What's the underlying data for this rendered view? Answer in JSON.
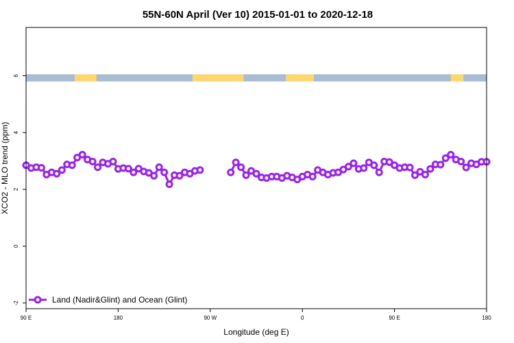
{
  "chart_data": {
    "type": "line",
    "title": "55N-60N April (Ver 10)   2015-01-01 to 2020-12-18",
    "xlabel": "Longitude (deg E)",
    "ylabel": "XCO2 - MLO trend (ppm)",
    "xlim": [
      -90,
      270
    ],
    "ylim": [
      -2.2,
      7.7
    ],
    "x_ticks": [
      {
        "value": -90,
        "label": "90 E"
      },
      {
        "value": -18,
        "label": "180"
      },
      {
        "value": 54,
        "label": "90 W"
      },
      {
        "value": 126,
        "label": "0"
      },
      {
        "value": 198,
        "label": "90 E"
      },
      {
        "value": 270,
        "label": "180"
      }
    ],
    "y_ticks": [
      {
        "value": -2,
        "label": "-2"
      },
      {
        "value": 0,
        "label": "0"
      },
      {
        "value": 2,
        "label": "2"
      },
      {
        "value": 4,
        "label": "4"
      },
      {
        "value": 6,
        "label": "6"
      }
    ],
    "grid": false,
    "legend_position": "bottom-left",
    "series": [
      {
        "name": "Land (Nadir&Glint) and Ocean (Glint)",
        "color": "#9a1ff0",
        "x": [
          -90,
          -86,
          -82,
          -78,
          -74,
          -70,
          -66,
          -62,
          -58,
          -54,
          -50,
          -46,
          -42,
          -38,
          -34,
          -30,
          -26,
          -22,
          -18,
          -14,
          -10,
          -6,
          -2,
          2,
          6,
          10,
          14,
          18,
          22,
          26,
          30,
          34,
          38,
          42,
          46,
          70,
          74,
          78,
          82,
          86,
          90,
          94,
          98,
          102,
          106,
          110,
          114,
          118,
          122,
          126,
          130,
          134,
          138,
          142,
          146,
          150,
          154,
          158,
          162,
          166,
          170,
          174,
          178,
          182,
          186,
          190,
          194,
          198,
          202,
          206,
          210,
          214,
          218,
          222,
          226,
          230,
          234,
          238,
          242,
          246,
          250,
          254,
          258,
          262,
          266,
          270
        ],
        "y": [
          2.85,
          2.75,
          2.78,
          2.76,
          2.52,
          2.6,
          2.55,
          2.68,
          2.88,
          2.85,
          3.12,
          3.22,
          3.05,
          2.98,
          2.78,
          2.95,
          2.9,
          2.98,
          2.72,
          2.75,
          2.73,
          2.6,
          2.73,
          2.63,
          2.58,
          2.48,
          2.78,
          2.6,
          2.18,
          2.5,
          2.48,
          2.6,
          2.55,
          2.65,
          2.68,
          2.6,
          2.95,
          2.78,
          2.5,
          2.65,
          2.55,
          2.42,
          2.4,
          2.45,
          2.45,
          2.4,
          2.48,
          2.42,
          2.35,
          2.45,
          2.52,
          2.45,
          2.68,
          2.6,
          2.52,
          2.58,
          2.6,
          2.7,
          2.8,
          2.92,
          2.72,
          2.75,
          2.95,
          2.85,
          2.6,
          2.98,
          2.96,
          2.85,
          2.75,
          2.78,
          2.77,
          2.5,
          2.62,
          2.52,
          2.72,
          2.88,
          2.87,
          3.1,
          3.22,
          3.05,
          2.98,
          2.77,
          2.92,
          2.88,
          2.97,
          2.97
        ]
      }
    ],
    "land_ocean_band": {
      "y_range": [
        5.8,
        6.05
      ],
      "land_color": "#fdd66e",
      "ocean_color": "#a8bcd6"
    }
  }
}
